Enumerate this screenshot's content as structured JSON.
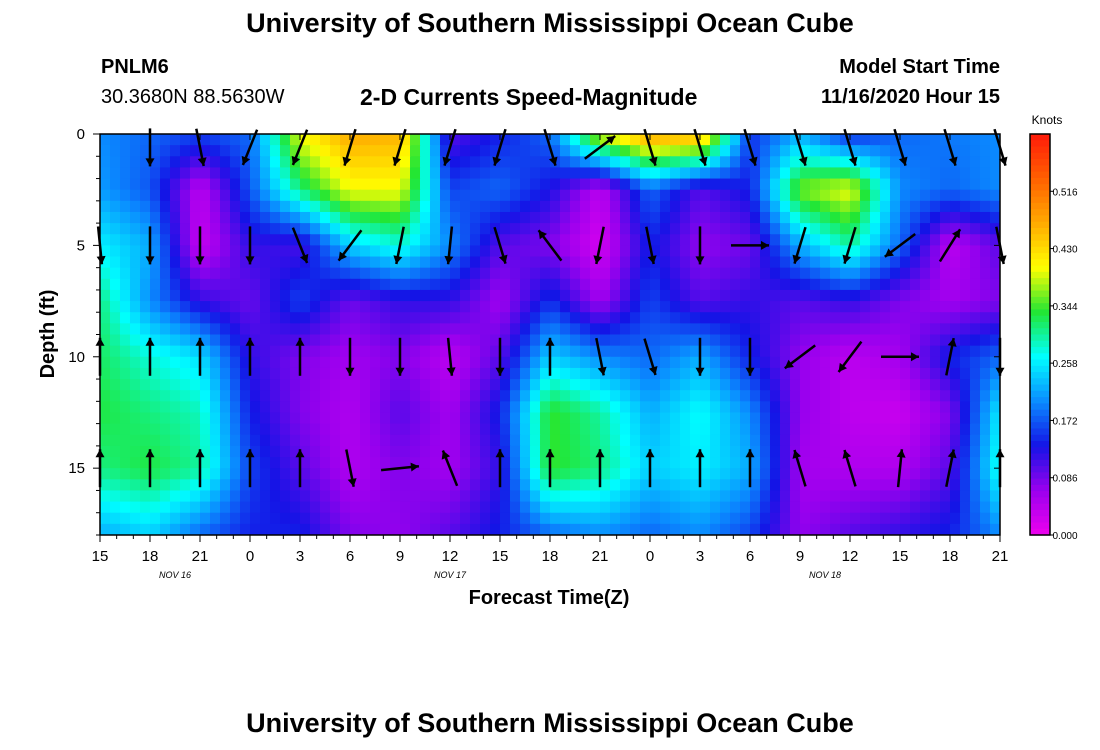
{
  "page": {
    "title_top": "University of Southern Mississippi Ocean Cube",
    "title_bottom": "University of Southern Mississippi Ocean Cube",
    "station_id": "PNLM6",
    "station_coords": "30.3680N 88.5630W",
    "subtitle": "2-D Currents Speed-Magnitude",
    "model_start_label": "Model Start Time",
    "model_start_value": "11/16/2020 Hour 15"
  },
  "colors": {
    "scale": [
      "#ee00ee",
      "#9a00ee",
      "#1414e6",
      "#0a8cff",
      "#00ffff",
      "#22e634",
      "#ffff00",
      "#ffaa00",
      "#ff6000",
      "#ff1a0a"
    ],
    "vector": "#000000",
    "frame": "#000000"
  },
  "chart_data": {
    "type": "heatmap",
    "title": "2-D Currents Speed-Magnitude",
    "xlabel": "Forecast Time(Z)",
    "ylabel": "Depth (ft)",
    "x_tick_labels": [
      "15",
      "18",
      "21",
      "0",
      "3",
      "6",
      "9",
      "12",
      "15",
      "18",
      "21",
      "0",
      "3",
      "6",
      "9",
      "12",
      "15",
      "18",
      "21"
    ],
    "x_range_hours": [
      0,
      54
    ],
    "day_labels": [
      {
        "label": "NOV 16",
        "hour": 4.5
      },
      {
        "label": "NOV 17",
        "hour": 21
      },
      {
        "label": "NOV 18",
        "hour": 43.5
      }
    ],
    "y_range_ft": [
      0,
      18
    ],
    "y_ticks": [
      0,
      5,
      10,
      15
    ],
    "colorbar": {
      "title": "Knots",
      "range": [
        0,
        0.602
      ],
      "labels": [
        "0.516",
        "0.430",
        "0.344",
        "0.258",
        "0.172",
        "0.086",
        "0.000"
      ]
    },
    "time_hours": [
      0,
      3,
      6,
      9,
      12,
      15,
      18,
      21,
      24,
      27,
      30,
      33,
      36,
      39,
      42,
      45,
      48,
      51,
      54
    ],
    "depth_ft": [
      0,
      2.5,
      5,
      7.5,
      10,
      12.5,
      15,
      18
    ],
    "speed_knots": [
      [
        0.2,
        0.18,
        0.16,
        0.18,
        0.4,
        0.47,
        0.46,
        0.1,
        0.14,
        0.18,
        0.4,
        0.48,
        0.47,
        0.15,
        0.22,
        0.14,
        0.18,
        0.19,
        0.2
      ],
      [
        0.21,
        0.17,
        0.04,
        0.17,
        0.31,
        0.4,
        0.4,
        0.16,
        0.18,
        0.13,
        0.04,
        0.18,
        0.1,
        0.14,
        0.36,
        0.4,
        0.2,
        0.18,
        0.2
      ],
      [
        0.26,
        0.22,
        0.03,
        0.12,
        0.11,
        0.24,
        0.28,
        0.2,
        0.1,
        0.08,
        0.02,
        0.14,
        0.07,
        0.09,
        0.22,
        0.3,
        0.18,
        0.04,
        0.1
      ],
      [
        0.31,
        0.2,
        0.12,
        0.09,
        0.16,
        0.09,
        0.12,
        0.12,
        0.06,
        0.15,
        0.06,
        0.16,
        0.1,
        0.12,
        0.1,
        0.12,
        0.08,
        0.06,
        0.08
      ],
      [
        0.32,
        0.28,
        0.25,
        0.12,
        0.08,
        0.06,
        0.08,
        0.04,
        0.1,
        0.24,
        0.2,
        0.18,
        0.22,
        0.14,
        0.07,
        0.04,
        0.06,
        0.14,
        0.18
      ],
      [
        0.33,
        0.31,
        0.29,
        0.14,
        0.08,
        0.05,
        0.1,
        0.06,
        0.14,
        0.34,
        0.3,
        0.22,
        0.27,
        0.2,
        0.07,
        0.04,
        0.03,
        0.08,
        0.26
      ],
      [
        0.31,
        0.33,
        0.3,
        0.16,
        0.1,
        0.05,
        0.08,
        0.06,
        0.12,
        0.34,
        0.31,
        0.24,
        0.26,
        0.22,
        0.06,
        0.05,
        0.05,
        0.1,
        0.28
      ],
      [
        0.22,
        0.24,
        0.18,
        0.14,
        0.14,
        0.08,
        0.07,
        0.1,
        0.14,
        0.18,
        0.2,
        0.18,
        0.2,
        0.16,
        0.07,
        0.1,
        0.12,
        0.14,
        0.2
      ]
    ],
    "vectors": [
      {
        "t": 0,
        "d": 5,
        "u": 0.1,
        "v": -1
      },
      {
        "t": 0,
        "d": 10,
        "u": 0,
        "v": 1
      },
      {
        "t": 0,
        "d": 15,
        "u": 0,
        "v": 1
      },
      {
        "t": 3,
        "d": 0.6,
        "u": 0,
        "v": -1
      },
      {
        "t": 3,
        "d": 5,
        "u": 0,
        "v": -1
      },
      {
        "t": 3,
        "d": 10,
        "u": 0,
        "v": 1
      },
      {
        "t": 3,
        "d": 15,
        "u": 0,
        "v": 1
      },
      {
        "t": 6,
        "d": 0.6,
        "u": 0.2,
        "v": -1
      },
      {
        "t": 6,
        "d": 5,
        "u": 0,
        "v": -1
      },
      {
        "t": 6,
        "d": 10,
        "u": 0,
        "v": 1
      },
      {
        "t": 6,
        "d": 15,
        "u": 0,
        "v": 1
      },
      {
        "t": 9,
        "d": 0.6,
        "u": -0.4,
        "v": -1
      },
      {
        "t": 9,
        "d": 5,
        "u": 0,
        "v": -1
      },
      {
        "t": 9,
        "d": 10,
        "u": 0,
        "v": 1
      },
      {
        "t": 9,
        "d": 15,
        "u": 0,
        "v": 1
      },
      {
        "t": 12,
        "d": 0.6,
        "u": -0.4,
        "v": -1
      },
      {
        "t": 12,
        "d": 5,
        "u": 0.4,
        "v": -1
      },
      {
        "t": 12,
        "d": 10,
        "u": 0,
        "v": 1
      },
      {
        "t": 12,
        "d": 15,
        "u": 0,
        "v": 1
      },
      {
        "t": 15,
        "d": 0.6,
        "u": -0.3,
        "v": -1
      },
      {
        "t": 15,
        "d": 5,
        "u": -0.6,
        "v": -0.8
      },
      {
        "t": 15,
        "d": 10,
        "u": 0,
        "v": -1
      },
      {
        "t": 15,
        "d": 15,
        "u": 0.2,
        "v": -1
      },
      {
        "t": 18,
        "d": 0.6,
        "u": -0.3,
        "v": -1
      },
      {
        "t": 18,
        "d": 5,
        "u": -0.2,
        "v": -1
      },
      {
        "t": 18,
        "d": 10,
        "u": 0,
        "v": -1
      },
      {
        "t": 18,
        "d": 15,
        "u": 1,
        "v": 0.1
      },
      {
        "t": 21,
        "d": 0.6,
        "u": -0.3,
        "v": -1
      },
      {
        "t": 21,
        "d": 5,
        "u": -0.1,
        "v": -1
      },
      {
        "t": 21,
        "d": 10,
        "u": 0.1,
        "v": -1
      },
      {
        "t": 21,
        "d": 15,
        "u": -0.4,
        "v": 1
      },
      {
        "t": 24,
        "d": 0.6,
        "u": -0.3,
        "v": -1
      },
      {
        "t": 24,
        "d": 5,
        "u": 0.3,
        "v": -1
      },
      {
        "t": 24,
        "d": 10,
        "u": 0,
        "v": -1
      },
      {
        "t": 24,
        "d": 15,
        "u": 0,
        "v": 1
      },
      {
        "t": 27,
        "d": 0.6,
        "u": 0.3,
        "v": -1
      },
      {
        "t": 27,
        "d": 5,
        "u": -0.6,
        "v": 0.8
      },
      {
        "t": 27,
        "d": 10,
        "u": 0,
        "v": 1
      },
      {
        "t": 27,
        "d": 15,
        "u": 0,
        "v": 1
      },
      {
        "t": 30,
        "d": 0.6,
        "u": 0.8,
        "v": 0.6
      },
      {
        "t": 30,
        "d": 5,
        "u": -0.2,
        "v": -1
      },
      {
        "t": 30,
        "d": 10,
        "u": 0.2,
        "v": -1
      },
      {
        "t": 30,
        "d": 15,
        "u": 0,
        "v": 1
      },
      {
        "t": 33,
        "d": 0.6,
        "u": 0.3,
        "v": -1
      },
      {
        "t": 33,
        "d": 5,
        "u": 0.2,
        "v": -1
      },
      {
        "t": 33,
        "d": 10,
        "u": 0.3,
        "v": -1
      },
      {
        "t": 33,
        "d": 15,
        "u": 0,
        "v": 1
      },
      {
        "t": 36,
        "d": 0.6,
        "u": 0.3,
        "v": -1
      },
      {
        "t": 36,
        "d": 5,
        "u": 0,
        "v": -1
      },
      {
        "t": 36,
        "d": 10,
        "u": 0,
        "v": -1
      },
      {
        "t": 36,
        "d": 15,
        "u": 0,
        "v": 1
      },
      {
        "t": 39,
        "d": 0.6,
        "u": 0.3,
        "v": -1
      },
      {
        "t": 39,
        "d": 5,
        "u": 1,
        "v": 0
      },
      {
        "t": 39,
        "d": 10,
        "u": 0,
        "v": -1
      },
      {
        "t": 39,
        "d": 15,
        "u": 0,
        "v": 1
      },
      {
        "t": 42,
        "d": 0.6,
        "u": 0.3,
        "v": -1
      },
      {
        "t": 42,
        "d": 5,
        "u": -0.3,
        "v": -1
      },
      {
        "t": 42,
        "d": 10,
        "u": -0.8,
        "v": -0.6
      },
      {
        "t": 42,
        "d": 15,
        "u": -0.3,
        "v": 1
      },
      {
        "t": 45,
        "d": 0.6,
        "u": 0.3,
        "v": -1
      },
      {
        "t": 45,
        "d": 5,
        "u": -0.3,
        "v": -1
      },
      {
        "t": 45,
        "d": 10,
        "u": -0.6,
        "v": -0.8
      },
      {
        "t": 45,
        "d": 15,
        "u": -0.3,
        "v": 1
      },
      {
        "t": 48,
        "d": 0.6,
        "u": 0.3,
        "v": -1
      },
      {
        "t": 48,
        "d": 5,
        "u": -0.8,
        "v": -0.6
      },
      {
        "t": 48,
        "d": 10,
        "u": 1,
        "v": 0
      },
      {
        "t": 48,
        "d": 15,
        "u": 0.1,
        "v": 1
      },
      {
        "t": 51,
        "d": 0.6,
        "u": 0.3,
        "v": -1
      },
      {
        "t": 51,
        "d": 5,
        "u": 0.5,
        "v": 0.8
      },
      {
        "t": 51,
        "d": 10,
        "u": 0.2,
        "v": 1
      },
      {
        "t": 51,
        "d": 15,
        "u": 0.2,
        "v": 1
      },
      {
        "t": 54,
        "d": 0.6,
        "u": 0.3,
        "v": -1
      },
      {
        "t": 54,
        "d": 5,
        "u": 0.2,
        "v": -1
      },
      {
        "t": 54,
        "d": 10,
        "u": 0,
        "v": -1
      },
      {
        "t": 54,
        "d": 15,
        "u": 0,
        "v": 1
      }
    ]
  }
}
